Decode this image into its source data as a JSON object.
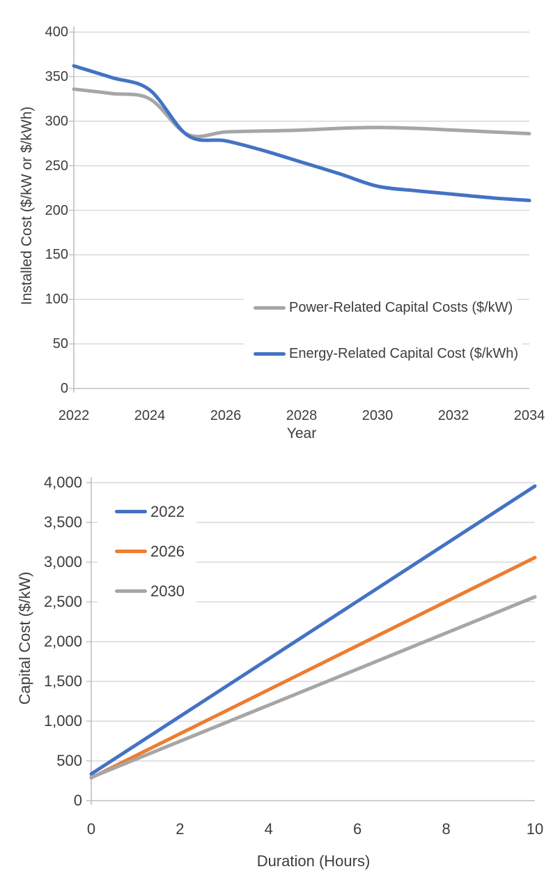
{
  "figure": {
    "description": "Two stacked line charts of battery storage cost projections",
    "background": "#ffffff",
    "text_color": "#3d3d3d",
    "gridline_color": "#D9D9D9",
    "axis_color": "#BFBFBF"
  },
  "chart_data": [
    {
      "type": "line",
      "title": "",
      "xlabel": "Year",
      "ylabel": "Installed Cost ($/kW or $/kWh)",
      "x": [
        2022,
        2023,
        2024,
        2025,
        2026,
        2027,
        2028,
        2029,
        2030,
        2031,
        2032,
        2033,
        2034
      ],
      "x_tick_labels": [
        "2022",
        "2024",
        "2026",
        "2028",
        "2030",
        "2032",
        "2034"
      ],
      "y_tick_labels": [
        "400",
        "350",
        "300",
        "250",
        "200",
        "150",
        "100",
        "50",
        "0"
      ],
      "xlim": [
        2022,
        2034
      ],
      "ylim": [
        0,
        400
      ],
      "grid": true,
      "line_style": "smooth",
      "legend_position": "inside middle-right",
      "series": [
        {
          "name": "Power-Related Capital Costs ($/kW)",
          "color": "#A6A6A6",
          "values": [
            336,
            331,
            325,
            285,
            288,
            289,
            290,
            292,
            293,
            292,
            290,
            288,
            286
          ]
        },
        {
          "name": "Energy-Related Capital Cost ($/kWh)",
          "color": "#4472C4",
          "values": [
            362,
            349,
            335,
            284,
            278,
            267,
            254,
            241,
            227,
            222,
            218,
            214,
            211
          ]
        }
      ]
    },
    {
      "type": "line",
      "title": "",
      "xlabel": "Duration (Hours)",
      "ylabel": "Capital Cost ($/kW)",
      "x": [
        0,
        10
      ],
      "x_tick_labels": [
        "0",
        "2",
        "4",
        "6",
        "8",
        "10"
      ],
      "y_tick_labels": [
        "4,000",
        "3,500",
        "3,000",
        "2,500",
        "2,000",
        "1,500",
        "1,000",
        "500",
        "0"
      ],
      "xlim": [
        0,
        10
      ],
      "ylim": [
        0,
        4000
      ],
      "grid": true,
      "line_style": "straight",
      "legend_position": "inside top-left",
      "series": [
        {
          "name": "2022",
          "color": "#4472C4",
          "values": [
            336,
            3956
          ]
        },
        {
          "name": "2026",
          "color": "#ED7D31",
          "values": [
            288,
            3058
          ]
        },
        {
          "name": "2030",
          "color": "#A6A6A6",
          "values": [
            293,
            2563
          ]
        }
      ]
    }
  ]
}
